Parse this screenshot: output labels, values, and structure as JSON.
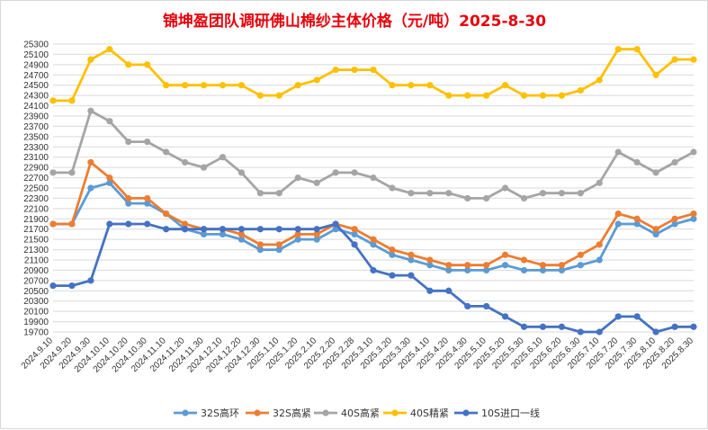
{
  "chart_data": {
    "type": "line",
    "title": "锦坤盈团队调研佛山棉纱主体价格（元/吨）2025-8-30",
    "xlabel": "",
    "ylabel": "",
    "ylim": [
      19700,
      25300
    ],
    "ytick_step": 200,
    "grid": "horizontal",
    "legend_position": "bottom",
    "categories": [
      "2024.9.10",
      "2024.9.20",
      "2024.9.30",
      "2024.10.10",
      "2024.10.20",
      "2024.10.30",
      "2024.11.10",
      "2024.11.20",
      "2024.11.30",
      "2024.12.10",
      "2024.12.20",
      "2024.12.30",
      "2025.1.10",
      "2025.1.20",
      "2025.2.10",
      "2025.2.20",
      "2025.2.28",
      "2025.3.10",
      "2025.3.20",
      "2025.3.30",
      "2025.4.10",
      "2025.4.20",
      "2025.4.30",
      "2025.5.10",
      "2025.5.20",
      "2025.5.30",
      "2025.6.10",
      "2025.6.20",
      "2025.6.30",
      "2025.7.10",
      "2025.7.20",
      "2025.7.30",
      "2025.8.10",
      "2025.8.20",
      "2025.8.30"
    ],
    "series": [
      {
        "name": "32S高环",
        "color": "#5b9bd5",
        "values": [
          21800,
          21800,
          22500,
          22600,
          22200,
          22200,
          22000,
          21700,
          21600,
          21600,
          21500,
          21300,
          21300,
          21500,
          21500,
          21700,
          21600,
          21400,
          21200,
          21100,
          21000,
          20900,
          20900,
          20900,
          21000,
          20900,
          20900,
          20900,
          21000,
          21100,
          21800,
          21800,
          21600,
          21800,
          21900
        ]
      },
      {
        "name": "32S高紧",
        "color": "#ed7d31",
        "values": [
          21800,
          21800,
          23000,
          22700,
          22300,
          22300,
          22000,
          21800,
          21700,
          21700,
          21600,
          21400,
          21400,
          21600,
          21600,
          21800,
          21700,
          21500,
          21300,
          21200,
          21100,
          21000,
          21000,
          21000,
          21200,
          21100,
          21000,
          21000,
          21200,
          21400,
          22000,
          21900,
          21700,
          21900,
          22000
        ]
      },
      {
        "name": "40S高紧",
        "color": "#a5a5a5",
        "values": [
          22800,
          22800,
          24000,
          23800,
          23400,
          23400,
          23200,
          23000,
          22900,
          23100,
          22800,
          22400,
          22400,
          22700,
          22600,
          22800,
          22800,
          22700,
          22500,
          22400,
          22400,
          22400,
          22300,
          22300,
          22500,
          22300,
          22400,
          22400,
          22400,
          22600,
          23200,
          23000,
          22800,
          23000,
          23200
        ]
      },
      {
        "name": "40S精紧",
        "color": "#ffc000",
        "values": [
          24200,
          24200,
          25000,
          25200,
          24900,
          24900,
          24500,
          24500,
          24500,
          24500,
          24500,
          24300,
          24300,
          24500,
          24600,
          24800,
          24800,
          24800,
          24500,
          24500,
          24500,
          24300,
          24300,
          24300,
          24500,
          24300,
          24300,
          24300,
          24400,
          24600,
          25200,
          25200,
          24700,
          25000,
          25000
        ]
      },
      {
        "name": "10S进口一线",
        "color": "#4472c4",
        "values": [
          20600,
          20600,
          20700,
          21800,
          21800,
          21800,
          21700,
          21700,
          21700,
          21700,
          21700,
          21700,
          21700,
          21700,
          21700,
          21800,
          21400,
          20900,
          20800,
          20800,
          20500,
          20500,
          20200,
          20200,
          20000,
          19800,
          19800,
          19800,
          19700,
          19700,
          20000,
          20000,
          19700,
          19800,
          19800
        ]
      }
    ]
  }
}
